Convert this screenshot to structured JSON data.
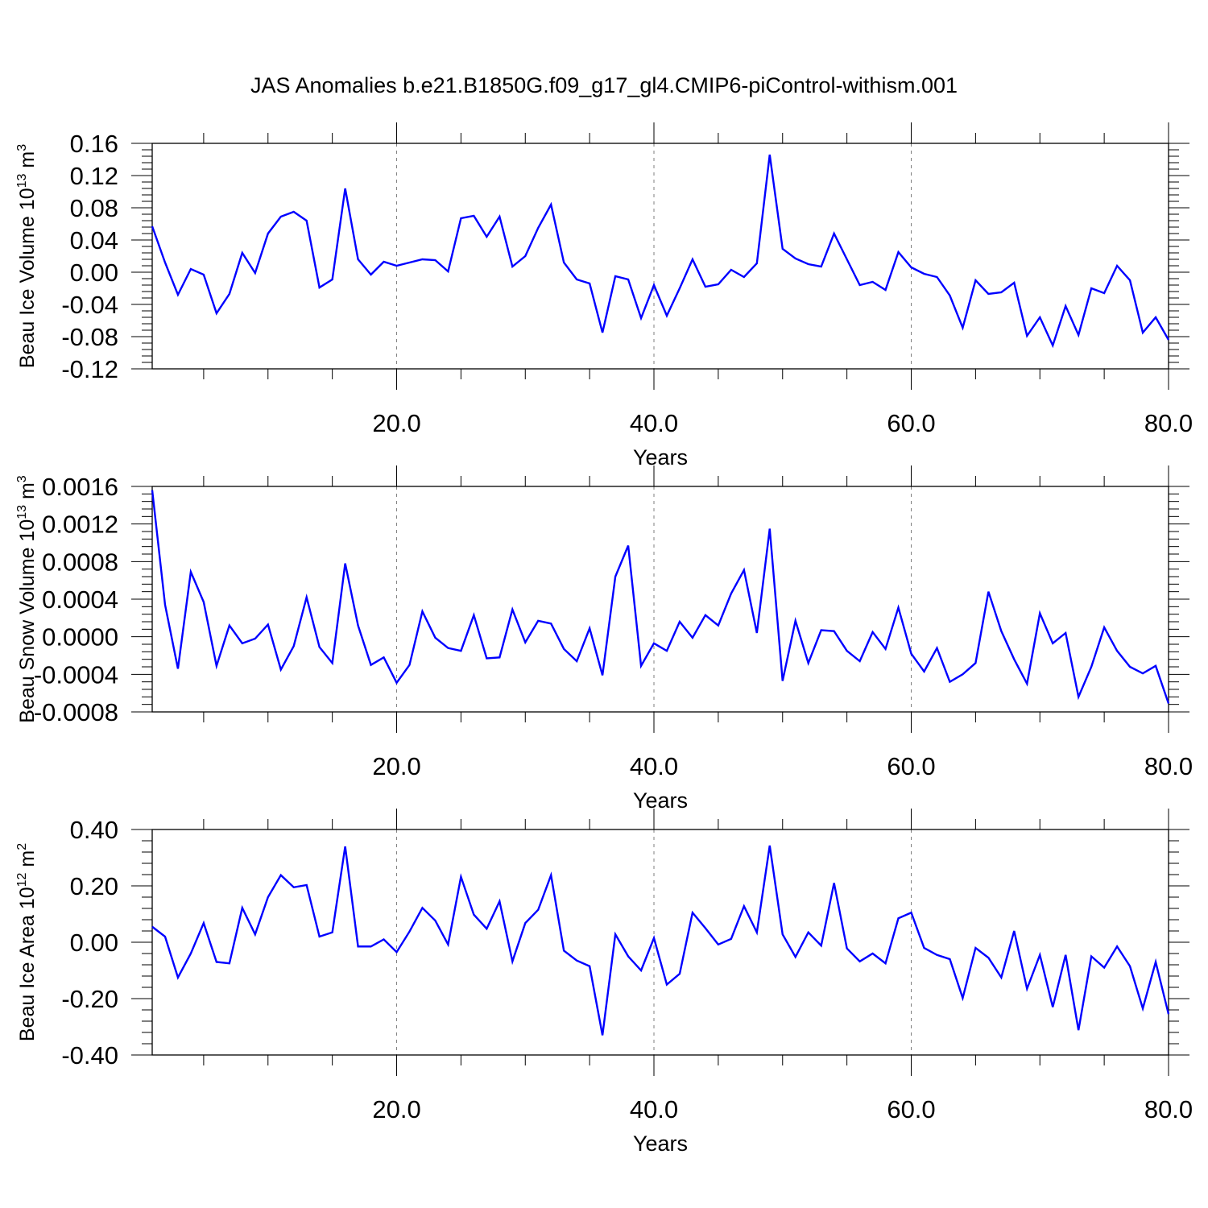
{
  "title": "JAS Anomalies b.e21.B1850G.f09_g17_gl4.CMIP6-piControl-withism.001",
  "colors": {
    "line": "#0000ff",
    "axis": "#000000",
    "grid": "#808080"
  },
  "chart_data": [
    {
      "type": "line",
      "ylabel": "Beau Ice Volume 10",
      "ylabel_exp": "13",
      "ylabel_unit": " m",
      "ylabel_unit_exp": "3",
      "xlabel": "Years",
      "xlim": [
        1,
        80
      ],
      "ylim": [
        -0.12,
        0.16
      ],
      "yticks": [
        -0.12,
        -0.08,
        -0.04,
        0.0,
        0.04,
        0.08,
        0.12,
        0.16
      ],
      "ytick_labels": [
        "-0.12",
        "-0.08",
        "-0.04",
        "0.00",
        "0.04",
        "0.08",
        "0.12",
        "0.16"
      ],
      "xticks": [
        20,
        40,
        60,
        80
      ],
      "xtick_labels": [
        "20.0",
        "40.0",
        "60.0",
        "80.0"
      ],
      "grid": "vertical dashed at major x ticks",
      "series": [
        {
          "x": [
            1,
            2,
            3,
            4,
            5,
            6,
            7,
            8,
            9,
            10,
            11,
            12,
            13,
            14,
            15,
            16,
            17,
            18,
            19,
            20,
            21,
            22,
            23,
            24,
            25,
            26,
            27,
            28,
            29,
            30,
            31,
            32,
            33,
            34,
            35,
            36,
            37,
            38,
            39,
            40,
            41,
            42,
            43,
            44,
            45,
            46,
            47,
            48,
            49,
            50,
            51,
            52,
            53,
            54,
            55,
            56,
            57,
            58,
            59,
            60,
            61,
            62,
            63,
            64,
            65,
            66,
            67,
            68,
            69,
            70,
            71,
            72,
            73,
            74,
            75,
            76,
            77,
            78,
            79,
            80
          ],
          "values": [
            0.057,
            0.012,
            -0.028,
            0.004,
            -0.003,
            -0.051,
            -0.027,
            0.024,
            -0.001,
            0.048,
            0.069,
            0.075,
            0.064,
            -0.019,
            -0.009,
            0.104,
            0.016,
            -0.003,
            0.013,
            0.008,
            0.012,
            0.016,
            0.015,
            0.001,
            0.067,
            0.07,
            0.044,
            0.069,
            0.007,
            0.02,
            0.055,
            0.084,
            0.012,
            -0.009,
            -0.014,
            -0.075,
            -0.005,
            -0.009,
            -0.057,
            -0.016,
            -0.054,
            -0.02,
            0.016,
            -0.018,
            -0.015,
            0.003,
            -0.006,
            0.011,
            0.146,
            0.029,
            0.017,
            0.01,
            0.007,
            0.048,
            0.016,
            -0.016,
            -0.012,
            -0.022,
            0.025,
            0.006,
            -0.002,
            -0.006,
            -0.029,
            -0.069,
            -0.01,
            -0.027,
            -0.025,
            -0.013,
            -0.079,
            -0.056,
            -0.091,
            -0.042,
            -0.078,
            -0.02,
            -0.026,
            0.008,
            -0.01,
            -0.075,
            -0.056,
            -0.084
          ]
        }
      ]
    },
    {
      "type": "line",
      "ylabel": "Beau Snow Volume 10",
      "ylabel_exp": "13",
      "ylabel_unit": " m",
      "ylabel_unit_exp": "3",
      "xlabel": "Years",
      "xlim": [
        1,
        80
      ],
      "ylim": [
        -0.0008,
        0.0016
      ],
      "yticks": [
        -0.0008,
        -0.0004,
        0.0,
        0.0004,
        0.0008,
        0.0012,
        0.0016
      ],
      "ytick_labels": [
        "-0.0008",
        "-0.0004",
        "0.0000",
        "0.0004",
        "0.0008",
        "0.0012",
        "0.0016"
      ],
      "xticks": [
        20,
        40,
        60,
        80
      ],
      "xtick_labels": [
        "20.0",
        "40.0",
        "60.0",
        "80.0"
      ],
      "grid": "vertical dashed at major x ticks",
      "series": [
        {
          "x": [
            1,
            2,
            3,
            4,
            5,
            6,
            7,
            8,
            9,
            10,
            11,
            12,
            13,
            14,
            15,
            16,
            17,
            18,
            19,
            20,
            21,
            22,
            23,
            24,
            25,
            26,
            27,
            28,
            29,
            30,
            31,
            32,
            33,
            34,
            35,
            36,
            37,
            38,
            39,
            40,
            41,
            42,
            43,
            44,
            45,
            46,
            47,
            48,
            49,
            50,
            51,
            52,
            53,
            54,
            55,
            56,
            57,
            58,
            59,
            60,
            61,
            62,
            63,
            64,
            65,
            66,
            67,
            68,
            69,
            70,
            71,
            72,
            73,
            74,
            75,
            76,
            77,
            78,
            79,
            80
          ],
          "values": [
            0.00156,
            0.00034,
            -0.00034,
            0.00069,
            0.00037,
            -0.00031,
            0.00012,
            -7e-05,
            -2e-05,
            0.00013,
            -0.00035,
            -0.0001,
            0.00042,
            -0.00011,
            -0.00028,
            0.00078,
            0.00012,
            -0.0003,
            -0.00022,
            -0.00049,
            -0.0003,
            0.00027,
            -1e-05,
            -0.00012,
            -0.00015,
            0.00023,
            -0.00023,
            -0.00022,
            0.00029,
            -6e-05,
            0.00017,
            0.00014,
            -0.00013,
            -0.00026,
            9e-05,
            -0.00041,
            0.00064,
            0.00097,
            -0.00031,
            -7e-05,
            -0.00015,
            0.00016,
            -1e-05,
            0.00023,
            0.00012,
            0.00046,
            0.00071,
            4e-05,
            0.00115,
            -0.00047,
            0.00017,
            -0.00028,
            7e-05,
            6e-05,
            -0.00015,
            -0.00026,
            5e-05,
            -0.00013,
            0.00031,
            -0.00018,
            -0.00037,
            -0.00012,
            -0.00048,
            -0.0004,
            -0.00028,
            0.00048,
            6e-05,
            -0.00024,
            -0.0005,
            0.00025,
            -7e-05,
            4e-05,
            -0.00064,
            -0.00032,
            0.0001,
            -0.00015,
            -0.00032,
            -0.00039,
            -0.00031,
            -0.00071
          ]
        }
      ]
    },
    {
      "type": "line",
      "ylabel": "Beau Ice Area 10",
      "ylabel_exp": "12",
      "ylabel_unit": " m",
      "ylabel_unit_exp": "2",
      "xlabel": "Years",
      "xlim": [
        1,
        80
      ],
      "ylim": [
        -0.4,
        0.4
      ],
      "yticks": [
        -0.4,
        -0.2,
        0.0,
        0.2,
        0.4
      ],
      "ytick_labels": [
        "-0.40",
        "-0.20",
        "0.00",
        "0.20",
        "0.40"
      ],
      "xticks": [
        20,
        40,
        60,
        80
      ],
      "xtick_labels": [
        "20.0",
        "40.0",
        "60.0",
        "80.0"
      ],
      "grid": "vertical dashed at major x ticks",
      "series": [
        {
          "x": [
            1,
            2,
            3,
            4,
            5,
            6,
            7,
            8,
            9,
            10,
            11,
            12,
            13,
            14,
            15,
            16,
            17,
            18,
            19,
            20,
            21,
            22,
            23,
            24,
            25,
            26,
            27,
            28,
            29,
            30,
            31,
            32,
            33,
            34,
            35,
            36,
            37,
            38,
            39,
            40,
            41,
            42,
            43,
            44,
            45,
            46,
            47,
            48,
            49,
            50,
            51,
            52,
            53,
            54,
            55,
            56,
            57,
            58,
            59,
            60,
            61,
            62,
            63,
            64,
            65,
            66,
            67,
            68,
            69,
            70,
            71,
            72,
            73,
            74,
            75,
            76,
            77,
            78,
            79,
            80
          ],
          "values": [
            0.055,
            0.02,
            -0.125,
            -0.04,
            0.068,
            -0.07,
            -0.075,
            0.122,
            0.028,
            0.16,
            0.238,
            0.195,
            0.203,
            0.02,
            0.035,
            0.34,
            -0.015,
            -0.015,
            0.01,
            -0.035,
            0.038,
            0.122,
            0.077,
            -0.008,
            0.232,
            0.098,
            0.048,
            0.145,
            -0.068,
            0.068,
            0.115,
            0.238,
            -0.03,
            -0.065,
            -0.085,
            -0.33,
            0.028,
            -0.05,
            -0.1,
            0.015,
            -0.15,
            -0.112,
            0.105,
            0.05,
            -0.008,
            0.012,
            0.128,
            0.035,
            0.343,
            0.028,
            -0.052,
            0.035,
            -0.012,
            0.21,
            -0.022,
            -0.068,
            -0.04,
            -0.075,
            0.085,
            0.105,
            -0.02,
            -0.045,
            -0.06,
            -0.198,
            -0.02,
            -0.055,
            -0.125,
            0.04,
            -0.165,
            -0.045,
            -0.23,
            -0.045,
            -0.312,
            -0.05,
            -0.09,
            -0.015,
            -0.085,
            -0.235,
            -0.07,
            -0.255
          ]
        }
      ]
    }
  ]
}
